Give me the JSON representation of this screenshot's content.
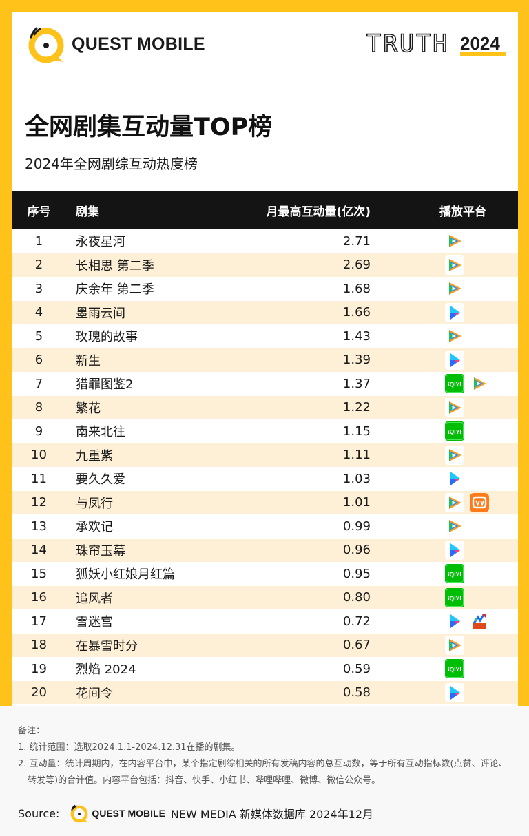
{
  "header": {
    "brand_name": "QUEST MOBILE",
    "truth_word": "TRUTH",
    "truth_year": "2024"
  },
  "title": "全网剧集互动量TOP榜",
  "subtitle": "2024年全网剧综互动热度榜",
  "table": {
    "columns": [
      "序号",
      "剧集",
      "月最高互动量(亿次)",
      "播放平台"
    ],
    "rows": [
      {
        "rank": "1",
        "name": "永夜星河",
        "value": "2.71",
        "platforms": [
          "tencent-video"
        ]
      },
      {
        "rank": "2",
        "name": "长相思 第二季",
        "value": "2.69",
        "platforms": [
          "tencent-video"
        ]
      },
      {
        "rank": "3",
        "name": "庆余年 第二季",
        "value": "1.68",
        "platforms": [
          "tencent-video"
        ]
      },
      {
        "rank": "4",
        "name": "墨雨云间",
        "value": "1.66",
        "platforms": [
          "youku"
        ]
      },
      {
        "rank": "5",
        "name": "玫瑰的故事",
        "value": "1.43",
        "platforms": [
          "tencent-video"
        ]
      },
      {
        "rank": "6",
        "name": "新生",
        "value": "1.39",
        "platforms": [
          "youku"
        ]
      },
      {
        "rank": "7",
        "name": "猎罪图鉴2",
        "value": "1.37",
        "platforms": [
          "iqiyi",
          "tencent-video"
        ]
      },
      {
        "rank": "8",
        "name": "繁花",
        "value": "1.22",
        "platforms": [
          "tencent-video"
        ]
      },
      {
        "rank": "9",
        "name": "南来北往",
        "value": "1.15",
        "platforms": [
          "iqiyi"
        ]
      },
      {
        "rank": "10",
        "name": "九重紫",
        "value": "1.11",
        "platforms": [
          "tencent-video"
        ]
      },
      {
        "rank": "11",
        "name": "要久久爱",
        "value": "1.03",
        "platforms": [
          "youku"
        ]
      },
      {
        "rank": "12",
        "name": "与凤行",
        "value": "1.01",
        "platforms": [
          "tencent-video",
          "mango-tv"
        ]
      },
      {
        "rank": "13",
        "name": "承欢记",
        "value": "0.99",
        "platforms": [
          "tencent-video"
        ]
      },
      {
        "rank": "14",
        "name": "珠帘玉幕",
        "value": "0.96",
        "platforms": [
          "youku"
        ]
      },
      {
        "rank": "15",
        "name": "狐妖小红娘月红篇",
        "value": "0.95",
        "platforms": [
          "iqiyi"
        ]
      },
      {
        "rank": "16",
        "name": "追风者",
        "value": "0.80",
        "platforms": [
          "iqiyi"
        ]
      },
      {
        "rank": "17",
        "name": "雪迷宫",
        "value": "0.72",
        "platforms": [
          "youku",
          "cctv-video"
        ]
      },
      {
        "rank": "18",
        "name": "在暴雪时分",
        "value": "0.67",
        "platforms": [
          "tencent-video"
        ]
      },
      {
        "rank": "19",
        "name": "烈焰 2024",
        "value": "0.59",
        "platforms": [
          "iqiyi"
        ]
      },
      {
        "rank": "20",
        "name": "花间令",
        "value": "0.58",
        "platforms": [
          "youku"
        ]
      }
    ]
  },
  "notes": {
    "heading": "备注：",
    "items": [
      "1. 统计范围：选取2024.1.1-2024.12.31在播的剧集。",
      "2. 互动量：统计周期内，在内容平台中，某个指定剧综相关的所有发稿内容的总互动数，等于所有互动指标数(点赞、评论、转发等)的合计值。内容平台包括：抖音、快手、小红书、哔哩哔哩、微博、微信公众号。"
    ]
  },
  "source": {
    "label": "Source:",
    "brand_name": "QUEST MOBILE",
    "text": "NEW MEDIA 新媒体数据库 2024年12月"
  },
  "colors": {
    "brand_yellow": "#FFC21A",
    "header_black": "#141414",
    "row_alt": "#FDF0D6",
    "tencent_green": "#20C05A",
    "tencent_blue": "#1E90FF",
    "youku_blue": "#1E8FFF",
    "iqiyi_green": "#00BE06",
    "mango_orange": "#FF7A1A"
  }
}
